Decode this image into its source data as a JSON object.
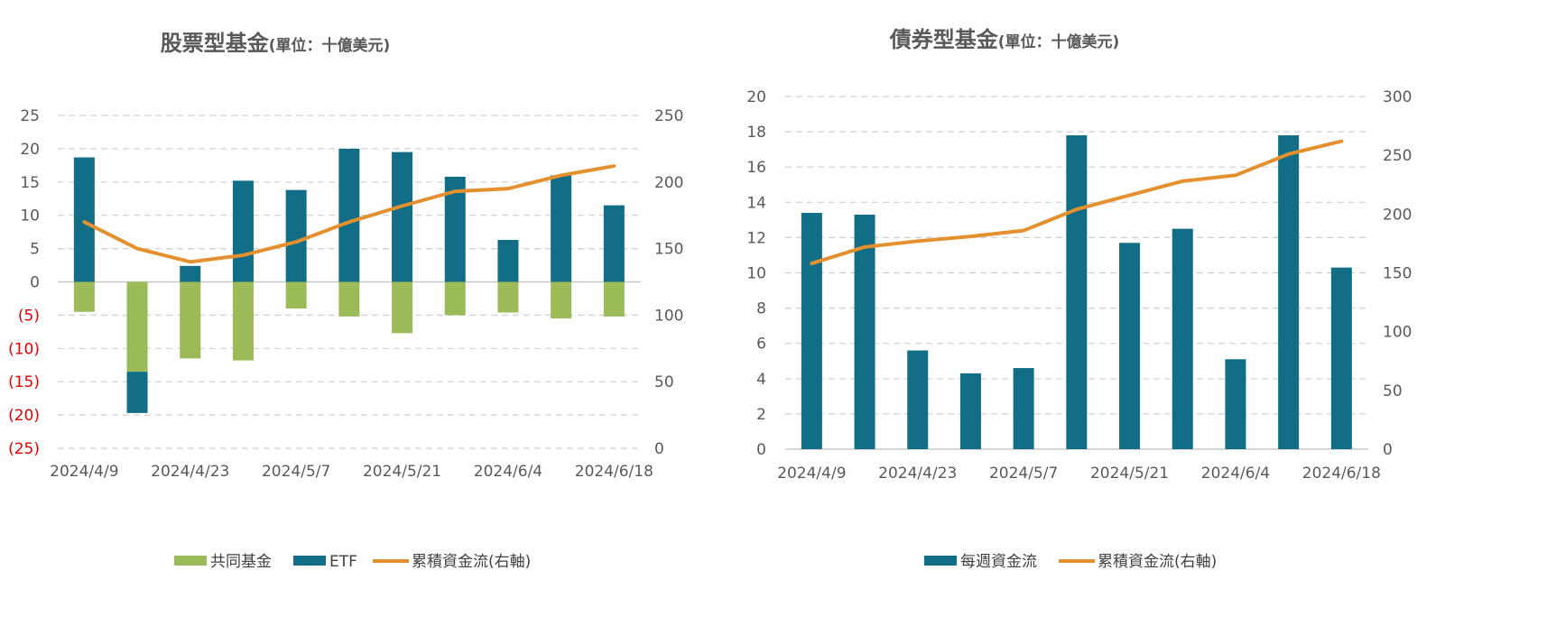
{
  "colors": {
    "mutual_fund": "#9bbb59",
    "etf": "#116e86",
    "weekly_flow": "#116e86",
    "cumulative": "#e4902f",
    "negative_tick": "#e00000"
  },
  "chart_data": [
    {
      "type": "bar",
      "title": "股票型基金",
      "title_unit": "(單位：十億美元)",
      "x": [
        "2024/4/9",
        "2024/4/16",
        "2024/4/23",
        "2024/4/30",
        "2024/5/7",
        "2024/5/14",
        "2024/5/21",
        "2024/5/28",
        "2024/6/4",
        "2024/6/11",
        "2024/6/18"
      ],
      "x_tick_labels": [
        "2024/4/9",
        "2024/4/23",
        "2024/5/7",
        "2024/5/21",
        "2024/6/4",
        "2024/6/18"
      ],
      "series": [
        {
          "name": "共同基金",
          "type": "bar",
          "stack": "flow",
          "values": [
            -4.5,
            -13.5,
            -11.5,
            -11.8,
            -4,
            -5.2,
            -7.7,
            -5,
            -4.6,
            -5.5,
            -5.2
          ]
        },
        {
          "name": "ETF",
          "type": "bar",
          "stack": "flow",
          "values": [
            18.7,
            -6.2,
            2.4,
            15.2,
            13.8,
            20,
            19.5,
            15.8,
            6.3,
            16,
            11.5
          ]
        },
        {
          "name": "累積資金流(右軸)",
          "type": "line",
          "axis": "right",
          "values": [
            170,
            150,
            140,
            145,
            155,
            170,
            182,
            193,
            195,
            205,
            212
          ]
        }
      ],
      "y_left": {
        "min": -25,
        "max": 25,
        "step": 5,
        "tick_labels": [
          "(25)",
          "(20)",
          "(15)",
          "(10)",
          "(5)",
          "0",
          "5",
          "10",
          "15",
          "20",
          "25"
        ]
      },
      "y_right": {
        "min": 0,
        "max": 250,
        "step": 50,
        "tick_labels": [
          "0",
          "50",
          "100",
          "150",
          "200",
          "250"
        ]
      },
      "grid": true,
      "legend_position": "bottom"
    },
    {
      "type": "bar",
      "title": "債券型基金",
      "title_unit": "(單位：十億美元)",
      "x": [
        "2024/4/9",
        "2024/4/16",
        "2024/4/23",
        "2024/4/30",
        "2024/5/7",
        "2024/5/14",
        "2024/5/21",
        "2024/5/28",
        "2024/6/4",
        "2024/6/11",
        "2024/6/18"
      ],
      "x_tick_labels": [
        "2024/4/9",
        "2024/4/23",
        "2024/5/7",
        "2024/5/21",
        "2024/6/4",
        "2024/6/18"
      ],
      "series": [
        {
          "name": "每週資金流",
          "type": "bar",
          "values": [
            13.4,
            13.3,
            5.6,
            4.3,
            4.6,
            17.8,
            11.7,
            12.5,
            5.1,
            17.8,
            10.3
          ]
        },
        {
          "name": "累積資金流(右軸)",
          "type": "line",
          "axis": "right",
          "values": [
            158,
            172,
            177,
            181,
            186,
            204,
            216,
            228,
            233,
            251,
            262
          ]
        }
      ],
      "y_left": {
        "min": 0,
        "max": 20,
        "step": 2,
        "tick_labels": [
          "0",
          "2",
          "4",
          "6",
          "8",
          "10",
          "12",
          "14",
          "16",
          "18",
          "20"
        ]
      },
      "y_right": {
        "min": 0,
        "max": 300,
        "step": 50,
        "tick_labels": [
          "0",
          "50",
          "100",
          "150",
          "200",
          "250",
          "300"
        ]
      },
      "grid": true,
      "legend_position": "bottom"
    }
  ]
}
